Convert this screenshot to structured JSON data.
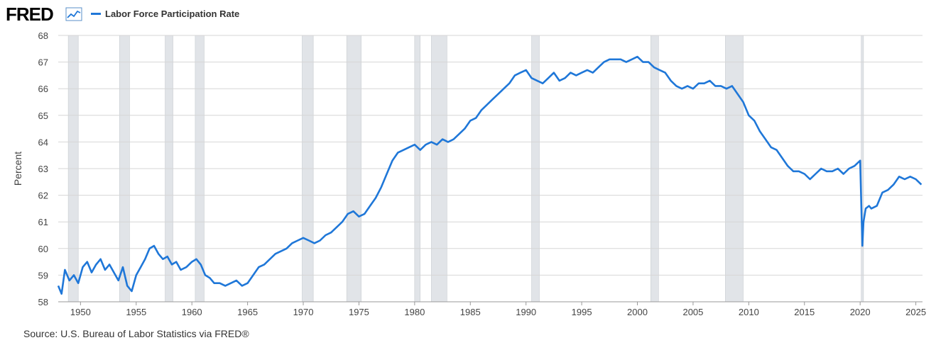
{
  "header": {
    "logo_text": "FRED",
    "series_label": "Labor Force Participation Rate"
  },
  "footer": {
    "source": "Source: U.S. Bureau of Labor Statistics via FRED®"
  },
  "colors": {
    "line": "#1f77d8",
    "recession": "#e1e4e8",
    "grid": "#d6d6d6"
  },
  "chart_data": {
    "type": "line",
    "title": "",
    "xlabel": "",
    "ylabel": "Percent",
    "xlim": [
      1948.0,
      2025.6
    ],
    "ylim": [
      58,
      68
    ],
    "y_ticks": [
      58,
      59,
      60,
      61,
      62,
      63,
      64,
      65,
      66,
      67,
      68
    ],
    "x_ticks": [
      1950,
      1955,
      1960,
      1965,
      1970,
      1975,
      1980,
      1985,
      1990,
      1995,
      2000,
      2005,
      2010,
      2015,
      2020,
      2025
    ],
    "grid": true,
    "legend": "top-left",
    "recessions": [
      [
        1948.9,
        1949.8
      ],
      [
        1953.5,
        1954.4
      ],
      [
        1957.6,
        1958.3
      ],
      [
        1960.3,
        1961.1
      ],
      [
        1969.9,
        1970.9
      ],
      [
        1973.9,
        1975.2
      ],
      [
        1980.0,
        1980.5
      ],
      [
        1981.5,
        1982.9
      ],
      [
        1990.5,
        1991.2
      ],
      [
        2001.2,
        2001.9
      ],
      [
        2007.9,
        2009.5
      ],
      [
        2020.1,
        2020.3
      ]
    ],
    "series": [
      {
        "name": "Labor Force Participation Rate",
        "x": [
          1948.0,
          1948.3,
          1948.6,
          1949.0,
          1949.4,
          1949.8,
          1950.2,
          1950.6,
          1951.0,
          1951.4,
          1951.8,
          1952.2,
          1952.6,
          1953.0,
          1953.4,
          1953.8,
          1954.2,
          1954.6,
          1955.0,
          1955.4,
          1955.8,
          1956.2,
          1956.6,
          1957.0,
          1957.4,
          1957.8,
          1958.2,
          1958.6,
          1959.0,
          1959.5,
          1960.0,
          1960.4,
          1960.8,
          1961.2,
          1961.6,
          1962.0,
          1962.5,
          1963.0,
          1963.5,
          1964.0,
          1964.5,
          1965.0,
          1965.5,
          1966.0,
          1966.5,
          1967.0,
          1967.5,
          1968.0,
          1968.5,
          1969.0,
          1969.5,
          1970.0,
          1970.5,
          1971.0,
          1971.5,
          1972.0,
          1972.5,
          1973.0,
          1973.5,
          1974.0,
          1974.5,
          1975.0,
          1975.5,
          1976.0,
          1976.5,
          1977.0,
          1977.5,
          1978.0,
          1978.5,
          1979.0,
          1979.5,
          1980.0,
          1980.5,
          1981.0,
          1981.5,
          1982.0,
          1982.5,
          1983.0,
          1983.5,
          1984.0,
          1984.5,
          1985.0,
          1985.5,
          1986.0,
          1986.5,
          1987.0,
          1987.5,
          1988.0,
          1988.5,
          1989.0,
          1989.5,
          1990.0,
          1990.5,
          1991.0,
          1991.5,
          1992.0,
          1992.5,
          1993.0,
          1993.5,
          1994.0,
          1994.5,
          1995.0,
          1995.5,
          1996.0,
          1996.5,
          1997.0,
          1997.5,
          1998.0,
          1998.5,
          1999.0,
          1999.5,
          2000.0,
          2000.5,
          2001.0,
          2001.5,
          2002.0,
          2002.5,
          2003.0,
          2003.5,
          2004.0,
          2004.5,
          2005.0,
          2005.5,
          2006.0,
          2006.5,
          2007.0,
          2007.5,
          2008.0,
          2008.5,
          2009.0,
          2009.5,
          2010.0,
          2010.5,
          2011.0,
          2011.5,
          2012.0,
          2012.5,
          2013.0,
          2013.5,
          2014.0,
          2014.5,
          2015.0,
          2015.5,
          2016.0,
          2016.5,
          2017.0,
          2017.5,
          2018.0,
          2018.5,
          2019.0,
          2019.5,
          2020.0,
          2020.2,
          2020.3,
          2020.5,
          2020.8,
          2021.0,
          2021.5,
          2022.0,
          2022.5,
          2023.0,
          2023.5,
          2024.0,
          2024.5,
          2025.0,
          2025.5
        ],
        "values": [
          58.6,
          58.3,
          59.2,
          58.8,
          59.0,
          58.7,
          59.3,
          59.5,
          59.1,
          59.4,
          59.6,
          59.2,
          59.4,
          59.1,
          58.8,
          59.3,
          58.6,
          58.4,
          59.0,
          59.3,
          59.6,
          60.0,
          60.1,
          59.8,
          59.6,
          59.7,
          59.4,
          59.5,
          59.2,
          59.3,
          59.5,
          59.6,
          59.4,
          59.0,
          58.9,
          58.7,
          58.7,
          58.6,
          58.7,
          58.8,
          58.6,
          58.7,
          59.0,
          59.3,
          59.4,
          59.6,
          59.8,
          59.9,
          60.0,
          60.2,
          60.3,
          60.4,
          60.3,
          60.2,
          60.3,
          60.5,
          60.6,
          60.8,
          61.0,
          61.3,
          61.4,
          61.2,
          61.3,
          61.6,
          61.9,
          62.3,
          62.8,
          63.3,
          63.6,
          63.7,
          63.8,
          63.9,
          63.7,
          63.9,
          64.0,
          63.9,
          64.1,
          64.0,
          64.1,
          64.3,
          64.5,
          64.8,
          64.9,
          65.2,
          65.4,
          65.6,
          65.8,
          66.0,
          66.2,
          66.5,
          66.6,
          66.7,
          66.4,
          66.3,
          66.2,
          66.4,
          66.6,
          66.3,
          66.4,
          66.6,
          66.5,
          66.6,
          66.7,
          66.6,
          66.8,
          67.0,
          67.1,
          67.1,
          67.1,
          67.0,
          67.1,
          67.2,
          67.0,
          67.0,
          66.8,
          66.7,
          66.6,
          66.3,
          66.1,
          66.0,
          66.1,
          66.0,
          66.2,
          66.2,
          66.3,
          66.1,
          66.1,
          66.0,
          66.1,
          65.8,
          65.5,
          65.0,
          64.8,
          64.4,
          64.1,
          63.8,
          63.7,
          63.4,
          63.1,
          62.9,
          62.9,
          62.8,
          62.6,
          62.8,
          63.0,
          62.9,
          62.9,
          63.0,
          62.8,
          63.0,
          63.1,
          63.3,
          60.1,
          61.0,
          61.5,
          61.6,
          61.5,
          61.6,
          62.1,
          62.2,
          62.4,
          62.7,
          62.6,
          62.7,
          62.6,
          62.4
        ]
      }
    ]
  }
}
